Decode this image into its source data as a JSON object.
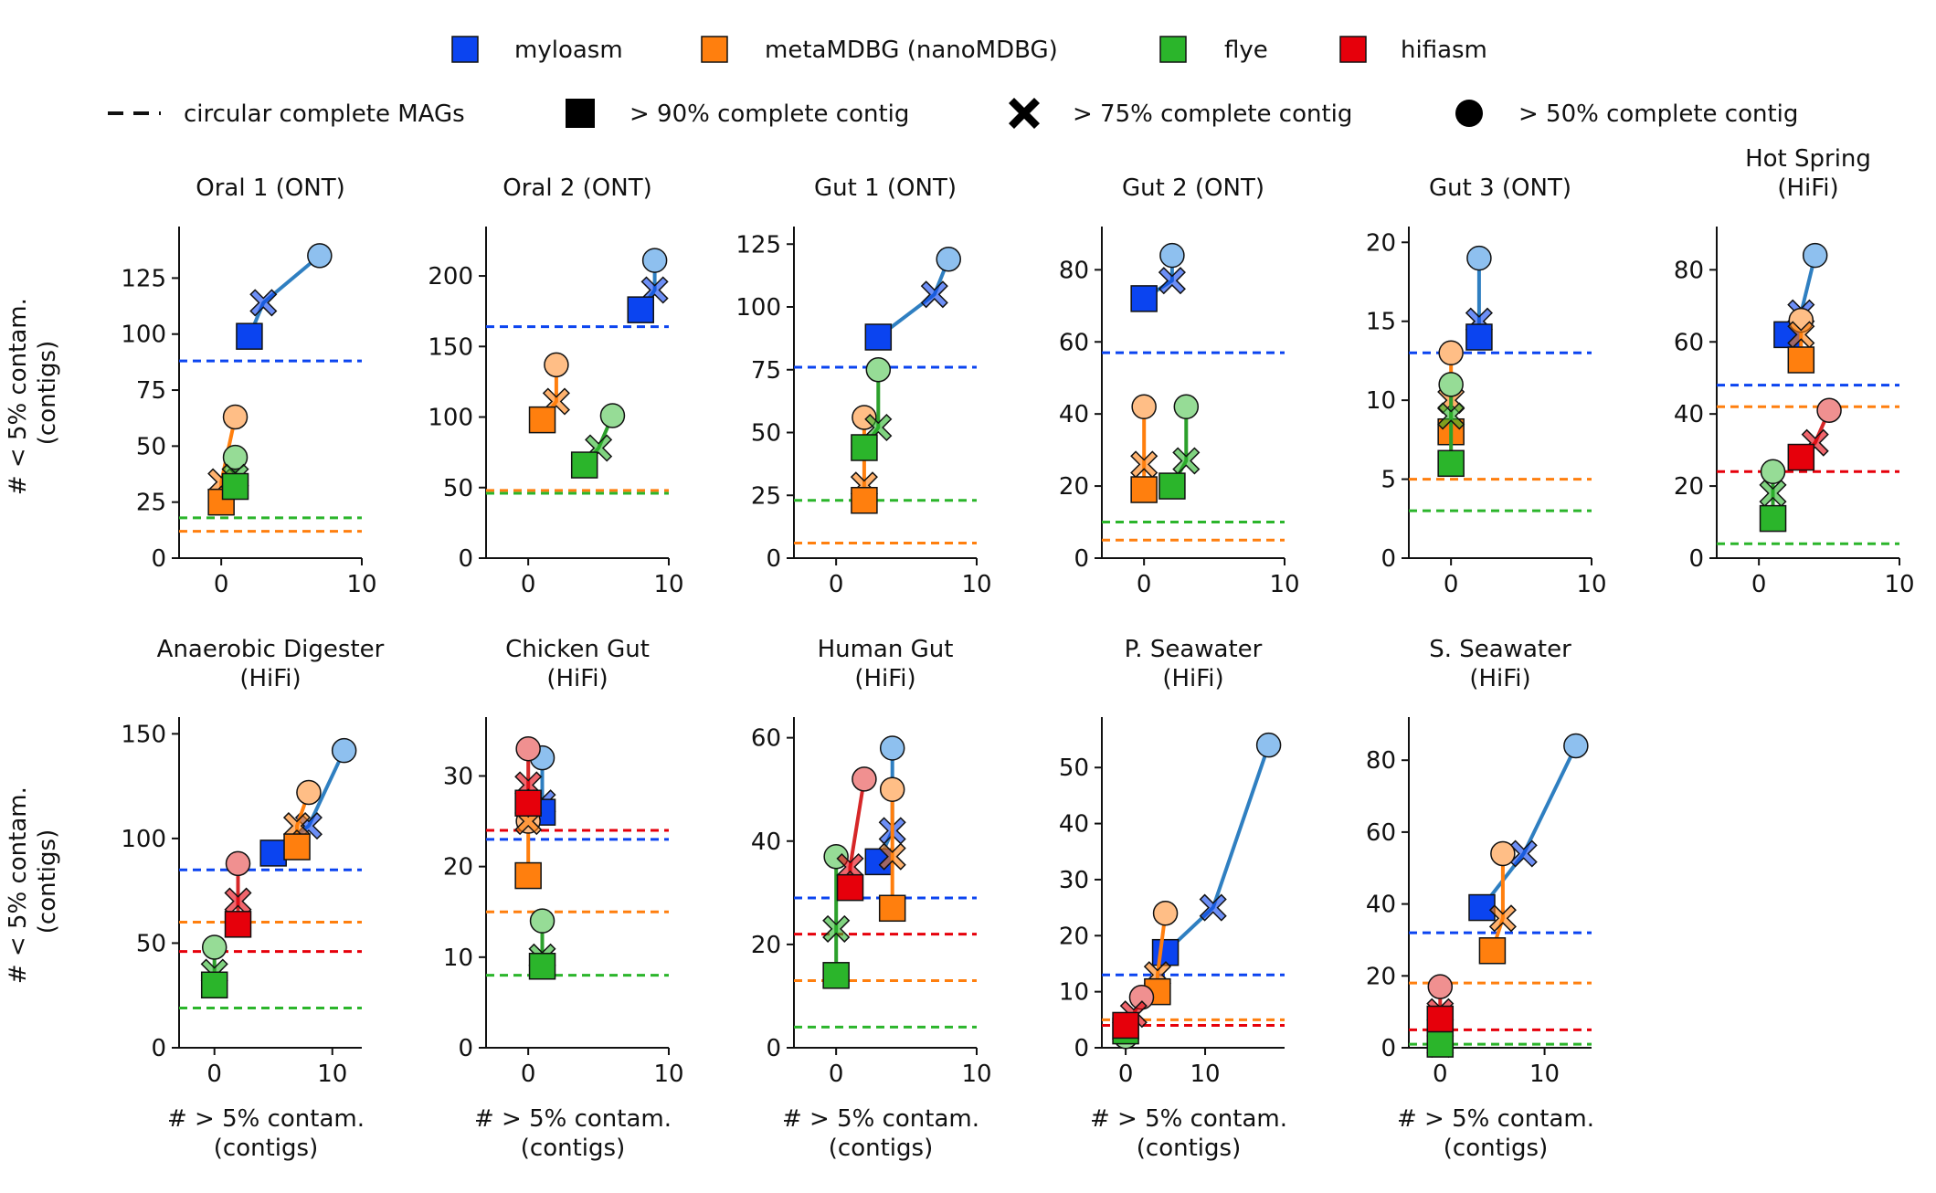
{
  "legend": {
    "tools": [
      {
        "name": "myloasm",
        "color": "#0b44f0",
        "light": "#8ec0ef",
        "line": "#2f7fc1"
      },
      {
        "name": "metaMDBG (nanoMDBG)",
        "color": "#ff7f0e",
        "light": "#ffbe86",
        "line": "#ff7f0e"
      },
      {
        "name": "flye",
        "color": "#2bb52b",
        "light": "#96dc96",
        "line": "#2ca02c"
      },
      {
        "name": "hifiasm",
        "color": "#e6000b",
        "light": "#f09090",
        "line": "#d62728"
      }
    ],
    "markers": [
      {
        "label": "circular complete MAGs",
        "shape": "dash"
      },
      {
        "label": "> 90% complete contig",
        "shape": "square"
      },
      {
        "label": "> 75% complete contig",
        "shape": "x"
      },
      {
        "label": "> 50% complete contig",
        "shape": "circle"
      }
    ]
  },
  "axis_labels": {
    "ylabel_line1": "# < 5% contam.",
    "ylabel_line2": "(contigs)",
    "xlabel_line1": "# > 5% contam.",
    "xlabel_line2": "(contigs)"
  },
  "chart_data": [
    {
      "type": "scatter",
      "title": [
        "Oral 1 (ONT)"
      ],
      "xlim": [
        -3,
        10
      ],
      "ylim": [
        0,
        148
      ],
      "xticks": [
        0,
        10
      ],
      "yticks": [
        0,
        25,
        50,
        75,
        100,
        125
      ],
      "series": [
        {
          "tool": "myloasm",
          "sq": [
            2,
            99
          ],
          "xm": [
            3,
            114
          ],
          "ci": [
            7,
            135
          ]
        },
        {
          "tool": "metaMDBG (nanoMDBG)",
          "sq": [
            0,
            25
          ],
          "xm": [
            0,
            34
          ],
          "ci": [
            1,
            63
          ]
        },
        {
          "tool": "flye",
          "sq": [
            1,
            32
          ],
          "xm": [
            1,
            36
          ],
          "ci": [
            1,
            45
          ]
        }
      ],
      "hlines": [
        {
          "tool": "myloasm",
          "y": 88
        },
        {
          "tool": "flye",
          "y": 18
        },
        {
          "tool": "metaMDBG (nanoMDBG)",
          "y": 12
        }
      ]
    },
    {
      "type": "scatter",
      "title": [
        "Oral 2 (ONT)"
      ],
      "xlim": [
        -3,
        10
      ],
      "ylim": [
        0,
        235
      ],
      "xticks": [
        0,
        10
      ],
      "yticks": [
        0,
        50,
        100,
        150,
        200
      ],
      "series": [
        {
          "tool": "myloasm",
          "sq": [
            8,
            176
          ],
          "xm": [
            9,
            190
          ],
          "ci": [
            9,
            211
          ]
        },
        {
          "tool": "metaMDBG (nanoMDBG)",
          "sq": [
            1,
            98
          ],
          "xm": [
            2,
            111
          ],
          "ci": [
            2,
            137
          ]
        },
        {
          "tool": "flye",
          "sq": [
            4,
            66
          ],
          "xm": [
            5,
            78
          ],
          "ci": [
            6,
            101
          ]
        }
      ],
      "hlines": [
        {
          "tool": "myloasm",
          "y": 164
        },
        {
          "tool": "metaMDBG (nanoMDBG)",
          "y": 48
        },
        {
          "tool": "flye",
          "y": 46
        }
      ]
    },
    {
      "type": "scatter",
      "title": [
        "Gut 1 (ONT)"
      ],
      "xlim": [
        -3,
        10
      ],
      "ylim": [
        0,
        132
      ],
      "xticks": [
        0,
        10
      ],
      "yticks": [
        0,
        25,
        50,
        75,
        100,
        125
      ],
      "series": [
        {
          "tool": "myloasm",
          "sq": [
            3,
            88
          ],
          "xm": [
            7,
            105
          ],
          "ci": [
            8,
            119
          ]
        },
        {
          "tool": "metaMDBG (nanoMDBG)",
          "sq": [
            2,
            23
          ],
          "xm": [
            2,
            29
          ],
          "ci": [
            2,
            56
          ]
        },
        {
          "tool": "flye",
          "sq": [
            2,
            44
          ],
          "xm": [
            3,
            52
          ],
          "ci": [
            3,
            75
          ]
        }
      ],
      "hlines": [
        {
          "tool": "myloasm",
          "y": 76
        },
        {
          "tool": "flye",
          "y": 23
        },
        {
          "tool": "metaMDBG (nanoMDBG)",
          "y": 6
        }
      ]
    },
    {
      "type": "scatter",
      "title": [
        "Gut 2 (ONT)"
      ],
      "xlim": [
        -3,
        10
      ],
      "ylim": [
        0,
        92
      ],
      "xticks": [
        0,
        10
      ],
      "yticks": [
        0,
        20,
        40,
        60,
        80
      ],
      "series": [
        {
          "tool": "myloasm",
          "sq": [
            0,
            72
          ],
          "xm": [
            2,
            77
          ],
          "ci": [
            2,
            84
          ]
        },
        {
          "tool": "metaMDBG (nanoMDBG)",
          "sq": [
            0,
            19
          ],
          "xm": [
            0,
            26
          ],
          "ci": [
            0,
            42
          ]
        },
        {
          "tool": "flye",
          "sq": [
            2,
            20
          ],
          "xm": [
            3,
            27
          ],
          "ci": [
            3,
            42
          ]
        }
      ],
      "hlines": [
        {
          "tool": "myloasm",
          "y": 57
        },
        {
          "tool": "flye",
          "y": 10
        },
        {
          "tool": "metaMDBG (nanoMDBG)",
          "y": 5
        }
      ]
    },
    {
      "type": "scatter",
      "title": [
        "Gut 3 (ONT)"
      ],
      "xlim": [
        -3,
        10
      ],
      "ylim": [
        0,
        21
      ],
      "xticks": [
        0,
        10
      ],
      "yticks": [
        0,
        5,
        10,
        15,
        20
      ],
      "series": [
        {
          "tool": "myloasm",
          "sq": [
            2,
            14
          ],
          "xm": [
            2,
            15
          ],
          "ci": [
            2,
            19
          ]
        },
        {
          "tool": "metaMDBG (nanoMDBG)",
          "sq": [
            0,
            8
          ],
          "xm": [
            0,
            10
          ],
          "ci": [
            0,
            13
          ]
        },
        {
          "tool": "flye",
          "sq": [
            0,
            6
          ],
          "xm": [
            0,
            9
          ],
          "ci": [
            0,
            11
          ]
        }
      ],
      "hlines": [
        {
          "tool": "myloasm",
          "y": 13
        },
        {
          "tool": "metaMDBG (nanoMDBG)",
          "y": 5
        },
        {
          "tool": "flye",
          "y": 3
        }
      ]
    },
    {
      "type": "scatter",
      "title": [
        "Hot Spring",
        "(HiFi)"
      ],
      "xlim": [
        -3,
        10
      ],
      "ylim": [
        0,
        92
      ],
      "xticks": [
        0,
        10
      ],
      "yticks": [
        0,
        20,
        40,
        60,
        80
      ],
      "series": [
        {
          "tool": "myloasm",
          "sq": [
            2,
            62
          ],
          "xm": [
            3,
            68
          ],
          "ci": [
            4,
            84
          ]
        },
        {
          "tool": "metaMDBG (nanoMDBG)",
          "sq": [
            3,
            55
          ],
          "xm": [
            3,
            62
          ],
          "ci": [
            3,
            66
          ]
        },
        {
          "tool": "flye",
          "sq": [
            1,
            11
          ],
          "xm": [
            1,
            18
          ],
          "ci": [
            1,
            24
          ]
        },
        {
          "tool": "hifiasm",
          "sq": [
            3,
            28
          ],
          "xm": [
            4,
            32
          ],
          "ci": [
            5,
            41
          ]
        }
      ],
      "hlines": [
        {
          "tool": "myloasm",
          "y": 48
        },
        {
          "tool": "metaMDBG (nanoMDBG)",
          "y": 42
        },
        {
          "tool": "hifiasm",
          "y": 24
        },
        {
          "tool": "flye",
          "y": 4
        }
      ]
    },
    {
      "type": "scatter",
      "title": [
        "Anaerobic Digester",
        "(HiFi)"
      ],
      "xlim": [
        -3,
        12.5
      ],
      "ylim": [
        0,
        158
      ],
      "xticks": [
        0,
        10
      ],
      "yticks": [
        0,
        50,
        100,
        150
      ],
      "series": [
        {
          "tool": "myloasm",
          "sq": [
            5,
            93
          ],
          "xm": [
            8,
            106
          ],
          "ci": [
            11,
            142
          ]
        },
        {
          "tool": "metaMDBG (nanoMDBG)",
          "sq": [
            7,
            96
          ],
          "xm": [
            7,
            106
          ],
          "ci": [
            8,
            122
          ]
        },
        {
          "tool": "flye",
          "sq": [
            0,
            30
          ],
          "xm": [
            0,
            36
          ],
          "ci": [
            0,
            48
          ]
        },
        {
          "tool": "hifiasm",
          "sq": [
            2,
            59
          ],
          "xm": [
            2,
            70
          ],
          "ci": [
            2,
            88
          ]
        }
      ],
      "hlines": [
        {
          "tool": "myloasm",
          "y": 85
        },
        {
          "tool": "metaMDBG (nanoMDBG)",
          "y": 60
        },
        {
          "tool": "hifiasm",
          "y": 46
        },
        {
          "tool": "flye",
          "y": 19
        }
      ]
    },
    {
      "type": "scatter",
      "title": [
        "Chicken Gut",
        "(HiFi)"
      ],
      "xlim": [
        -3,
        10
      ],
      "ylim": [
        0,
        36.5
      ],
      "xticks": [
        0,
        10
      ],
      "yticks": [
        0,
        10,
        20,
        30
      ],
      "series": [
        {
          "tool": "myloasm",
          "sq": [
            1,
            26
          ],
          "xm": [
            1,
            27
          ],
          "ci": [
            1,
            32
          ]
        },
        {
          "tool": "metaMDBG (nanoMDBG)",
          "sq": [
            0,
            19
          ],
          "xm": [
            0,
            25
          ],
          "ci": [
            0,
            25
          ]
        },
        {
          "tool": "flye",
          "sq": [
            1,
            9
          ],
          "xm": [
            1,
            10
          ],
          "ci": [
            1,
            14
          ]
        },
        {
          "tool": "hifiasm",
          "sq": [
            0,
            27
          ],
          "xm": [
            0,
            29
          ],
          "ci": [
            0,
            33
          ]
        }
      ],
      "hlines": [
        {
          "tool": "hifiasm",
          "y": 24
        },
        {
          "tool": "myloasm",
          "y": 23
        },
        {
          "tool": "metaMDBG (nanoMDBG)",
          "y": 15
        },
        {
          "tool": "flye",
          "y": 8
        }
      ]
    },
    {
      "type": "scatter",
      "title": [
        "Human Gut",
        "(HiFi)"
      ],
      "xlim": [
        -3,
        10
      ],
      "ylim": [
        0,
        64
      ],
      "xticks": [
        0,
        10
      ],
      "yticks": [
        0,
        20,
        40,
        60
      ],
      "series": [
        {
          "tool": "myloasm",
          "sq": [
            3,
            36
          ],
          "xm": [
            4,
            42
          ],
          "ci": [
            4,
            58
          ]
        },
        {
          "tool": "metaMDBG (nanoMDBG)",
          "sq": [
            4,
            27
          ],
          "xm": [
            4,
            37
          ],
          "ci": [
            4,
            50
          ]
        },
        {
          "tool": "flye",
          "sq": [
            0,
            14
          ],
          "xm": [
            0,
            23
          ],
          "ci": [
            0,
            37
          ]
        },
        {
          "tool": "hifiasm",
          "sq": [
            1,
            31
          ],
          "xm": [
            1,
            35
          ],
          "ci": [
            2,
            52
          ]
        }
      ],
      "hlines": [
        {
          "tool": "myloasm",
          "y": 29
        },
        {
          "tool": "hifiasm",
          "y": 22
        },
        {
          "tool": "metaMDBG (nanoMDBG)",
          "y": 13
        },
        {
          "tool": "flye",
          "y": 4
        }
      ]
    },
    {
      "type": "scatter",
      "title": [
        "P. Seawater",
        "(HiFi)"
      ],
      "xlim": [
        -3,
        20
      ],
      "ylim": [
        0,
        59
      ],
      "xticks": [
        0,
        10
      ],
      "yticks": [
        0,
        10,
        20,
        30,
        40,
        50
      ],
      "series": [
        {
          "tool": "myloasm",
          "sq": [
            5,
            17
          ],
          "xm": [
            11,
            25
          ],
          "ci": [
            18,
            54
          ]
        },
        {
          "tool": "metaMDBG (nanoMDBG)",
          "sq": [
            4,
            10
          ],
          "xm": [
            4,
            13
          ],
          "ci": [
            5,
            24
          ]
        },
        {
          "tool": "flye",
          "sq": [
            0,
            3
          ],
          "xm": [
            0,
            3
          ],
          "ci": [
            0,
            2
          ]
        },
        {
          "tool": "hifiasm",
          "sq": [
            0,
            4
          ],
          "xm": [
            1,
            6
          ],
          "ci": [
            2,
            9
          ]
        }
      ],
      "hlines": [
        {
          "tool": "myloasm",
          "y": 13
        },
        {
          "tool": "metaMDBG (nanoMDBG)",
          "y": 5
        },
        {
          "tool": "hifiasm",
          "y": 4
        }
      ]
    },
    {
      "type": "scatter",
      "title": [
        "S. Seawater",
        "(HiFi)"
      ],
      "xlim": [
        -3,
        14.5
      ],
      "ylim": [
        0,
        92
      ],
      "xticks": [
        0,
        10
      ],
      "yticks": [
        0,
        20,
        40,
        60,
        80
      ],
      "series": [
        {
          "tool": "myloasm",
          "sq": [
            4,
            39
          ],
          "xm": [
            8,
            54
          ],
          "ci": [
            13,
            84
          ]
        },
        {
          "tool": "metaMDBG (nanoMDBG)",
          "sq": [
            5,
            27
          ],
          "xm": [
            6,
            36
          ],
          "ci": [
            6,
            54
          ]
        },
        {
          "tool": "flye",
          "sq": [
            0,
            1
          ],
          "xm": [
            0,
            1
          ],
          "ci": [
            0,
            2
          ]
        },
        {
          "tool": "hifiasm",
          "sq": [
            0,
            8
          ],
          "xm": [
            0,
            10
          ],
          "ci": [
            0,
            17
          ]
        }
      ],
      "hlines": [
        {
          "tool": "myloasm",
          "y": 32
        },
        {
          "tool": "metaMDBG (nanoMDBG)",
          "y": 18
        },
        {
          "tool": "hifiasm",
          "y": 5
        },
        {
          "tool": "flye",
          "y": 1
        }
      ]
    }
  ]
}
